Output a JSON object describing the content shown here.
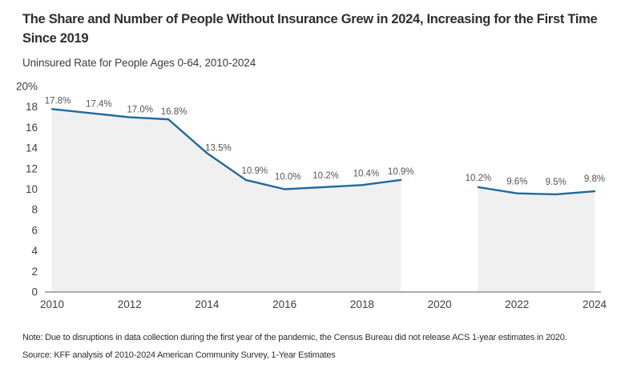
{
  "header": {
    "title": "The Share and Number of People Without Insurance Grew in 2024, Increasing for the First Time Since 2019",
    "subtitle": "Uninsured Rate for People Ages 0-64, 2010-2024"
  },
  "footer": {
    "note": "Note: Due to disruptions in data collection during the first year of the pandemic, the Census Bureau did not release ACS 1-year estimates in 2020.",
    "source": "Source: KFF analysis of 2010-2024 American Community Survey, 1-Year Estimates"
  },
  "chart_data": {
    "type": "line",
    "title": "Uninsured Rate for People Ages 0-64, 2010-2024",
    "x": [
      2010,
      2011,
      2012,
      2013,
      2014,
      2015,
      2016,
      2017,
      2018,
      2019,
      2020,
      2021,
      2022,
      2023,
      2024
    ],
    "values": [
      17.8,
      17.4,
      17.0,
      16.8,
      13.5,
      10.9,
      10.0,
      10.2,
      10.4,
      10.9,
      null,
      10.2,
      9.6,
      9.5,
      9.8
    ],
    "point_labels": [
      "17.8%",
      "17.4%",
      "17.0%",
      "16.8%",
      "13.5%",
      "10.9%",
      "10.0%",
      "10.2%",
      "10.4%",
      "10.9%",
      null,
      "10.2%",
      "9.6%",
      "9.5%",
      "9.8%"
    ],
    "x_tick_labels": [
      "2010",
      "2012",
      "2014",
      "2016",
      "2018",
      "2020",
      "2022",
      "2024"
    ],
    "x_tick_years": [
      2010,
      2012,
      2014,
      2016,
      2018,
      2020,
      2022,
      2024
    ],
    "y_ticks": [
      0,
      2,
      4,
      6,
      8,
      10,
      12,
      14,
      16,
      18,
      20
    ],
    "y_tick_labels": [
      "0",
      "2",
      "4",
      "6",
      "8",
      "10",
      "12",
      "14",
      "16",
      "18",
      "20%"
    ],
    "ylim": [
      0,
      20
    ],
    "grid": false,
    "legend": "none",
    "line_color": "#1e6a9e",
    "area_color": "#f0f0f0",
    "axis_color": "#ababab",
    "tick_label_color": "#3f3f3f",
    "data_label_color": "#555555"
  }
}
